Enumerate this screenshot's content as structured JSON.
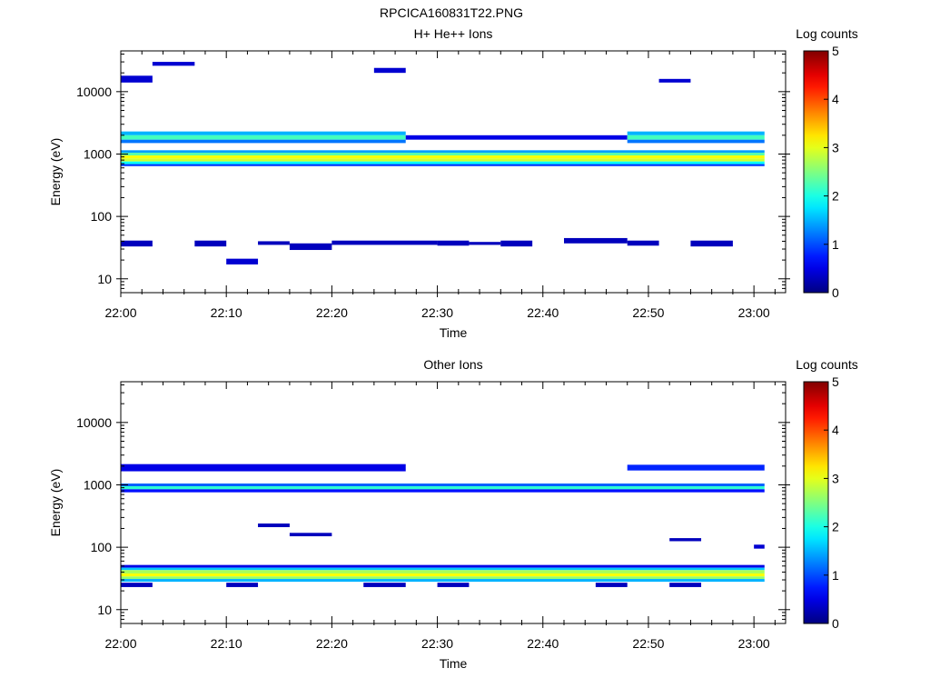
{
  "figure_title": "RPCICA160831T22.PNG",
  "chart_data": [
    {
      "type": "heatmap",
      "title": "H+ He++ Ions",
      "xlabel": "Time",
      "ylabel": "Energy (eV)",
      "x_scale": "time",
      "xlim": [
        "22:00",
        "23:03"
      ],
      "x_ticks": [
        "22:00",
        "22:10",
        "22:20",
        "22:30",
        "22:40",
        "22:50",
        "23:00"
      ],
      "y_scale": "log",
      "ylim": [
        6,
        45000
      ],
      "y_ticks": [
        "10",
        "100",
        "1000",
        "10000"
      ],
      "colorbar": {
        "label": "Log counts",
        "range": [
          0,
          5
        ],
        "ticks": [
          "0",
          "1",
          "2",
          "3",
          "4",
          "5"
        ]
      },
      "cells": [
        {
          "t0": "22:00",
          "t1": "22:03",
          "e0": 33,
          "e1": 41,
          "v": 0.3
        },
        {
          "t0": "22:07",
          "t1": "22:10",
          "e0": 33,
          "e1": 41,
          "v": 0.3
        },
        {
          "t0": "22:10",
          "t1": "22:13",
          "e0": 17,
          "e1": 21,
          "v": 0.4
        },
        {
          "t0": "22:13",
          "t1": "22:16",
          "e0": 35,
          "e1": 40,
          "v": 0.3
        },
        {
          "t0": "22:16",
          "t1": "22:20",
          "e0": 29,
          "e1": 37,
          "v": 0.3
        },
        {
          "t0": "22:20",
          "t1": "22:30",
          "e0": 35,
          "e1": 41,
          "v": 0.3
        },
        {
          "t0": "22:30",
          "t1": "22:33",
          "e0": 34,
          "e1": 41,
          "v": 0.3
        },
        {
          "t0": "22:33",
          "t1": "22:36",
          "e0": 35,
          "e1": 39,
          "v": 0.3
        },
        {
          "t0": "22:36",
          "t1": "22:39",
          "e0": 33,
          "e1": 41,
          "v": 0.3
        },
        {
          "t0": "22:42",
          "t1": "22:48",
          "e0": 37,
          "e1": 45,
          "v": 0.3
        },
        {
          "t0": "22:48",
          "t1": "22:51",
          "e0": 34,
          "e1": 41,
          "v": 0.3
        },
        {
          "t0": "22:54",
          "t1": "22:58",
          "e0": 33,
          "e1": 41,
          "v": 0.3
        },
        {
          "t0": "22:00",
          "t1": "22:03",
          "e0": 14000,
          "e1": 18000,
          "v": 0.4
        },
        {
          "t0": "22:03",
          "t1": "22:07",
          "e0": 26000,
          "e1": 30000,
          "v": 0.4
        },
        {
          "t0": "22:24",
          "t1": "22:27",
          "e0": 20000,
          "e1": 24000,
          "v": 0.4
        },
        {
          "t0": "22:51",
          "t1": "22:54",
          "e0": 14000,
          "e1": 16000,
          "v": 0.4
        },
        {
          "t0": "22:00",
          "t1": "22:27",
          "e0": 2000,
          "e1": 2300,
          "v": 1.5
        },
        {
          "t0": "22:00",
          "t1": "22:27",
          "e0": 1700,
          "e1": 2000,
          "v": 2.2
        },
        {
          "t0": "22:00",
          "t1": "22:27",
          "e0": 1500,
          "e1": 1700,
          "v": 1.2
        },
        {
          "t0": "22:27",
          "t1": "22:48",
          "e0": 1700,
          "e1": 2000,
          "v": 0.5
        },
        {
          "t0": "22:48",
          "t1": "23:01",
          "e0": 2000,
          "e1": 2300,
          "v": 1.5
        },
        {
          "t0": "22:48",
          "t1": "23:01",
          "e0": 1700,
          "e1": 2000,
          "v": 2.2
        },
        {
          "t0": "22:48",
          "t1": "23:01",
          "e0": 1500,
          "e1": 1700,
          "v": 1.2
        },
        {
          "t0": "22:00",
          "t1": "23:01",
          "e0": 1050,
          "e1": 1150,
          "v": 1.4
        },
        {
          "t0": "22:00",
          "t1": "23:01",
          "e0": 950,
          "e1": 1050,
          "v": 2.3
        },
        {
          "t0": "22:00",
          "t1": "23:01",
          "e0": 850,
          "e1": 950,
          "v": 3.1
        },
        {
          "t0": "22:00",
          "t1": "23:01",
          "e0": 760,
          "e1": 850,
          "v": 2.9
        },
        {
          "t0": "22:00",
          "t1": "23:01",
          "e0": 690,
          "e1": 760,
          "v": 1.9
        },
        {
          "t0": "22:00",
          "t1": "23:01",
          "e0": 640,
          "e1": 690,
          "v": 0.9
        }
      ]
    },
    {
      "type": "heatmap",
      "title": "Other Ions",
      "xlabel": "Time",
      "ylabel": "Energy (eV)",
      "x_scale": "time",
      "xlim": [
        "22:00",
        "23:03"
      ],
      "x_ticks": [
        "22:00",
        "22:10",
        "22:20",
        "22:30",
        "22:40",
        "22:50",
        "23:00"
      ],
      "y_scale": "log",
      "ylim": [
        6,
        45000
      ],
      "y_ticks": [
        "10",
        "100",
        "1000",
        "10000"
      ],
      "colorbar": {
        "label": "Log counts",
        "range": [
          0,
          5
        ],
        "ticks": [
          "0",
          "1",
          "2",
          "3",
          "4",
          "5"
        ]
      },
      "cells": [
        {
          "t0": "22:00",
          "t1": "22:27",
          "e0": 1650,
          "e1": 2150,
          "v": 0.5
        },
        {
          "t0": "22:48",
          "t1": "23:01",
          "e0": 1700,
          "e1": 2100,
          "v": 0.8
        },
        {
          "t0": "22:00",
          "t1": "23:01",
          "e0": 950,
          "e1": 1050,
          "v": 1.1
        },
        {
          "t0": "22:00",
          "t1": "23:01",
          "e0": 850,
          "e1": 950,
          "v": 2.1
        },
        {
          "t0": "22:00",
          "t1": "23:01",
          "e0": 760,
          "e1": 850,
          "v": 0.7
        },
        {
          "t0": "22:13",
          "t1": "22:16",
          "e0": 210,
          "e1": 240,
          "v": 0.3
        },
        {
          "t0": "22:16",
          "t1": "22:20",
          "e0": 150,
          "e1": 170,
          "v": 0.3
        },
        {
          "t0": "22:52",
          "t1": "22:55",
          "e0": 125,
          "e1": 140,
          "v": 0.3
        },
        {
          "t0": "23:00",
          "t1": "23:01",
          "e0": 95,
          "e1": 110,
          "v": 0.4
        },
        {
          "t0": "22:00",
          "t1": "23:01",
          "e0": 47,
          "e1": 52,
          "v": 0.5
        },
        {
          "t0": "22:00",
          "t1": "23:01",
          "e0": 43,
          "e1": 47,
          "v": 1.6
        },
        {
          "t0": "22:00",
          "t1": "23:01",
          "e0": 38,
          "e1": 43,
          "v": 2.7
        },
        {
          "t0": "22:00",
          "t1": "23:01",
          "e0": 34,
          "e1": 38,
          "v": 3.1
        },
        {
          "t0": "22:00",
          "t1": "23:01",
          "e0": 31,
          "e1": 34,
          "v": 2.6
        },
        {
          "t0": "22:00",
          "t1": "23:01",
          "e0": 28,
          "e1": 31,
          "v": 1.5
        },
        {
          "t0": "22:00",
          "t1": "22:03",
          "e0": 23,
          "e1": 27,
          "v": 0.3
        },
        {
          "t0": "22:10",
          "t1": "22:13",
          "e0": 23,
          "e1": 27,
          "v": 0.3
        },
        {
          "t0": "22:23",
          "t1": "22:27",
          "e0": 23,
          "e1": 27,
          "v": 0.3
        },
        {
          "t0": "22:30",
          "t1": "22:33",
          "e0": 23,
          "e1": 27,
          "v": 0.3
        },
        {
          "t0": "22:45",
          "t1": "22:48",
          "e0": 23,
          "e1": 27,
          "v": 0.3
        },
        {
          "t0": "22:52",
          "t1": "22:55",
          "e0": 23,
          "e1": 27,
          "v": 0.3
        }
      ]
    }
  ]
}
